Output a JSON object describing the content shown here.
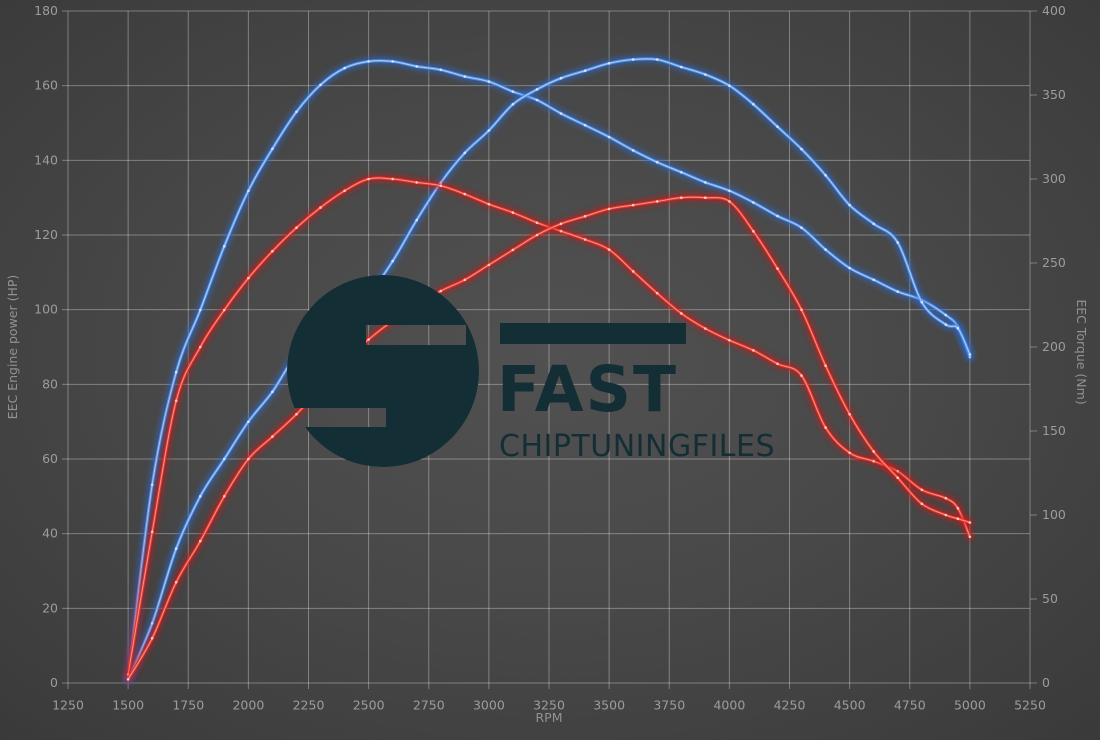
{
  "chart_data": {
    "type": "line",
    "title": "",
    "xlabel": "RPM",
    "ylabel_left": "EEC Engine power (HP)",
    "ylabel_right": "EEC Torque (Nm)",
    "x_range": [
      1250,
      5250
    ],
    "x_ticks": [
      1250,
      1500,
      1750,
      2000,
      2250,
      2500,
      2750,
      3000,
      3250,
      3500,
      3750,
      4000,
      4250,
      4500,
      4750,
      5000,
      5250
    ],
    "y_left_range": [
      0,
      180
    ],
    "y_left_ticks": [
      0,
      20,
      40,
      60,
      80,
      100,
      120,
      140,
      160,
      180
    ],
    "y_right_range": [
      0,
      400
    ],
    "y_right_ticks": [
      0,
      50,
      100,
      150,
      200,
      250,
      300,
      350,
      400
    ],
    "grid": true,
    "legend": "none",
    "x": [
      1500,
      1600,
      1700,
      1800,
      1900,
      2000,
      2100,
      2200,
      2300,
      2400,
      2500,
      2600,
      2700,
      2800,
      2900,
      3000,
      3100,
      3200,
      3300,
      3400,
      3500,
      3600,
      3700,
      3800,
      3900,
      4000,
      4100,
      4200,
      4300,
      4400,
      4500,
      4600,
      4700,
      4800,
      4900,
      4950,
      5000
    ],
    "series": [
      {
        "id": "torque-tuned-blue",
        "axis": "right",
        "peak": "370 Nm @ 2500 rpm",
        "colors": {
          "glow": "#2b6cd6",
          "core": "#4f8fe6",
          "highlight": "#bcd6f8",
          "marker": "#dce9fb"
        },
        "values": [
          2,
          118,
          185,
          222,
          260,
          293,
          318,
          340,
          356,
          366,
          370,
          370,
          367,
          365,
          361,
          358,
          352,
          347,
          339,
          332,
          325,
          317,
          310,
          304,
          298,
          293,
          286,
          278,
          271,
          258,
          247,
          240,
          233,
          228,
          219,
          212,
          194
        ]
      },
      {
        "id": "power-tuned-blue",
        "axis": "left",
        "peak": "167 HP @ 3600 rpm",
        "colors": {
          "glow": "#2b6cd6",
          "core": "#4f8fe6",
          "highlight": "#bcd6f8",
          "marker": "#dce9fb"
        },
        "values": [
          1,
          16,
          36,
          50,
          60,
          70,
          78,
          88,
          93,
          98,
          104,
          113,
          124,
          134,
          142,
          148,
          155,
          159,
          162,
          164,
          166,
          167,
          167,
          165,
          163,
          160,
          155,
          149,
          143,
          136,
          128,
          123,
          118,
          102,
          96,
          95,
          88
        ]
      },
      {
        "id": "torque-stock-red",
        "axis": "right",
        "peak": "300 Nm @ 2500 rpm",
        "colors": {
          "glow": "#d01512",
          "core": "#e33128",
          "highlight": "#ff9d90",
          "marker": "#ffd2ca"
        },
        "values": [
          5,
          90,
          168,
          200,
          222,
          241,
          257,
          271,
          283,
          293,
          300,
          300,
          298,
          296,
          291,
          285,
          280,
          274,
          269,
          264,
          258,
          245,
          232,
          220,
          211,
          204,
          198,
          190,
          183,
          152,
          137,
          132,
          126,
          115,
          110,
          104,
          87
        ]
      },
      {
        "id": "power-stock-red",
        "axis": "left",
        "peak": "130 HP @ 3800 rpm",
        "colors": {
          "glow": "#d01512",
          "core": "#e33128",
          "highlight": "#ff9d90",
          "marker": "#ffd2ca"
        },
        "values": [
          1,
          12,
          27,
          38,
          50,
          60,
          66,
          72,
          79,
          86,
          92,
          97,
          101,
          105,
          108,
          112,
          116,
          120,
          123,
          125,
          127,
          128,
          129,
          130,
          130,
          129,
          121,
          111,
          100,
          85,
          72,
          62,
          55,
          48,
          45,
          44,
          43
        ]
      }
    ],
    "watermark": {
      "brand": "FAST",
      "subtitle": "CHIPTUNINGFILES",
      "color": "#142e36"
    },
    "style": {
      "grid_color": "rgba(255,255,255,0.33)",
      "tick_text_color": "#9c9c9c",
      "axis_title_color": "#929292",
      "background_center": "#515151",
      "background_edge": "#222222"
    }
  }
}
